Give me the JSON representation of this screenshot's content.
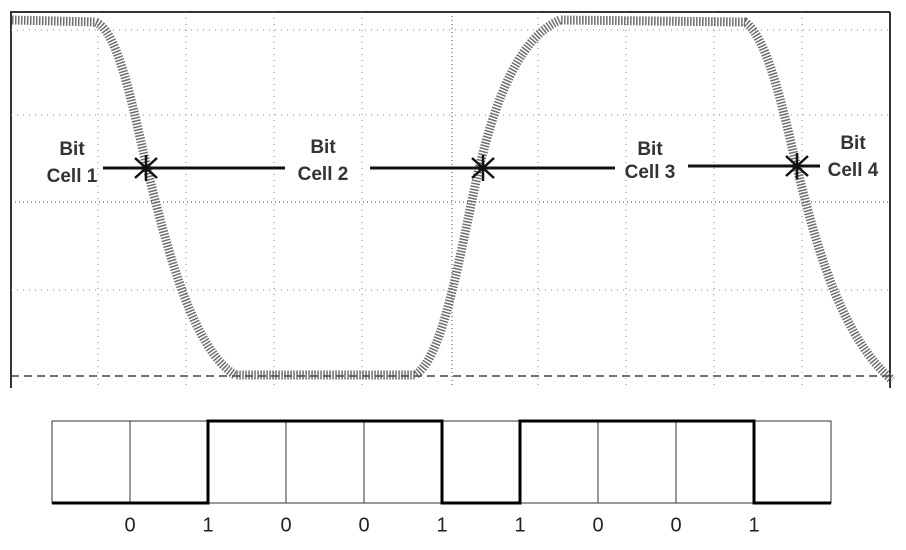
{
  "cells": [
    {
      "line1": "Bit",
      "line2": "Cell 1"
    },
    {
      "line1": "Bit",
      "line2": "Cell 2"
    },
    {
      "line1": "Bit",
      "line2": "Cell 3"
    },
    {
      "line1": "Bit",
      "line2": "Cell 4"
    }
  ],
  "bits": [
    "0",
    "1",
    "0",
    "0",
    "1",
    "1",
    "0",
    "0",
    "1"
  ]
}
